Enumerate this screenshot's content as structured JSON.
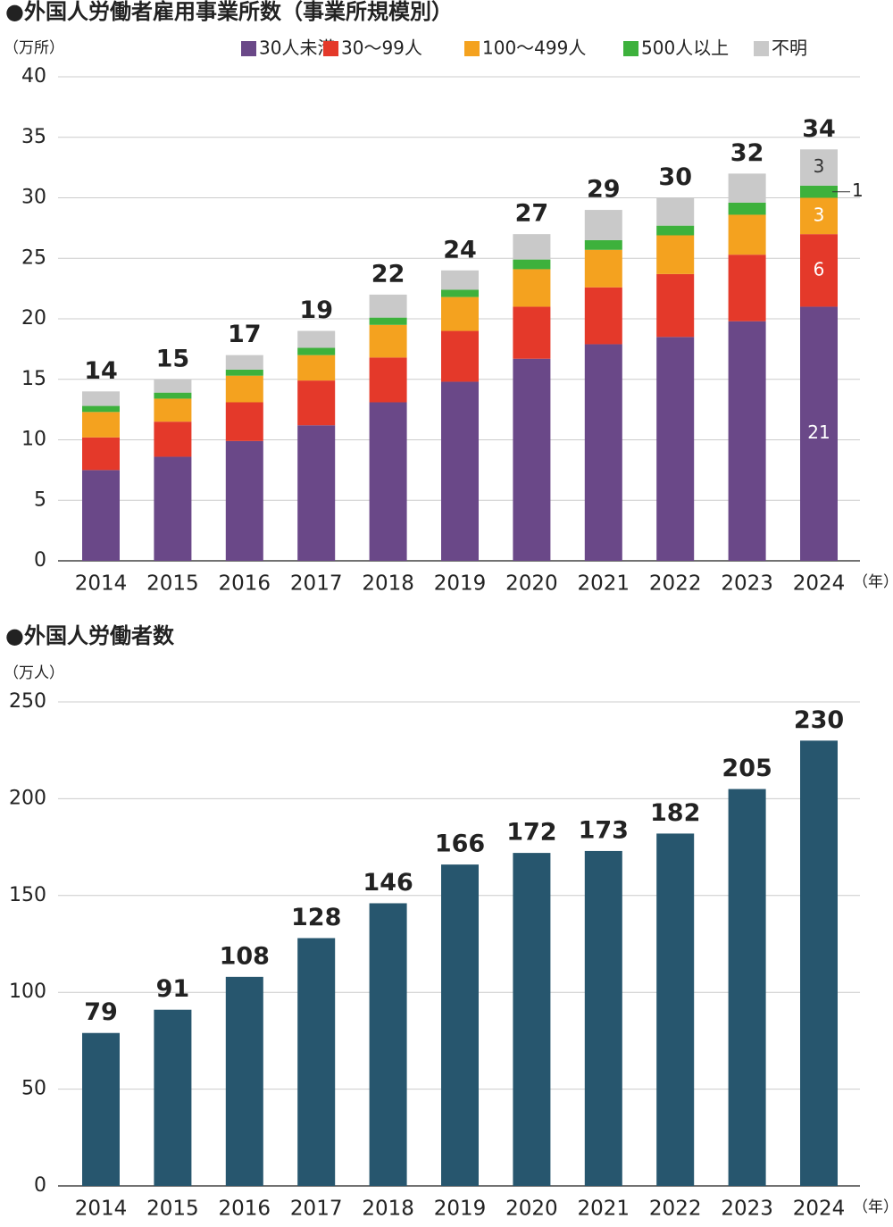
{
  "chart_data": [
    {
      "type": "stacked_bar",
      "title": "●外国人労働者雇用事業所数（事業所規模別）",
      "y_unit": "（万所）",
      "x_unit": "（年）",
      "categories": [
        "2014",
        "2015",
        "2016",
        "2017",
        "2018",
        "2019",
        "2020",
        "2021",
        "2022",
        "2023",
        "2024"
      ],
      "series": [
        {
          "name": "30人未満",
          "color": "#6a4888",
          "values": [
            7.5,
            8.6,
            9.9,
            11.2,
            13.1,
            14.8,
            16.7,
            17.9,
            18.5,
            19.8,
            21
          ],
          "value_labels": [
            null,
            null,
            null,
            null,
            null,
            null,
            null,
            null,
            null,
            null,
            "21"
          ]
        },
        {
          "name": "30〜99人",
          "color": "#e4392a",
          "values": [
            2.7,
            2.9,
            3.2,
            3.7,
            3.7,
            4.2,
            4.3,
            4.7,
            5.2,
            5.5,
            6
          ],
          "value_labels": [
            null,
            null,
            null,
            null,
            null,
            null,
            null,
            null,
            null,
            null,
            "6"
          ]
        },
        {
          "name": "100〜499人",
          "color": "#f4a21f",
          "values": [
            2.1,
            1.9,
            2.2,
            2.1,
            2.7,
            2.8,
            3.1,
            3.1,
            3.2,
            3.3,
            3
          ],
          "value_labels": [
            null,
            null,
            null,
            null,
            null,
            null,
            null,
            null,
            null,
            null,
            "3"
          ]
        },
        {
          "name": "500人以上",
          "color": "#3db13c",
          "values": [
            0.5,
            0.5,
            0.5,
            0.6,
            0.6,
            0.6,
            0.8,
            0.8,
            0.8,
            1.0,
            1
          ],
          "value_labels": [
            null,
            null,
            null,
            null,
            null,
            null,
            null,
            null,
            null,
            null,
            "1"
          ]
        },
        {
          "name": "不明",
          "color": "#c9c9c9",
          "values": [
            1.2,
            1.1,
            1.2,
            1.4,
            1.9,
            1.6,
            2.1,
            2.5,
            2.3,
            2.4,
            3
          ],
          "value_labels": [
            null,
            null,
            null,
            null,
            null,
            null,
            null,
            null,
            null,
            null,
            "3"
          ]
        }
      ],
      "totals": [
        14,
        15,
        17,
        19,
        22,
        24,
        27,
        29,
        30,
        32,
        34
      ],
      "ylim": [
        0,
        40
      ],
      "yticks": [
        0,
        5,
        10,
        15,
        20,
        25,
        30,
        35,
        40
      ],
      "grid": true
    },
    {
      "type": "bar",
      "title": "●外国人労働者数",
      "y_unit": "（万人）",
      "x_unit": "（年）",
      "categories": [
        "2014",
        "2015",
        "2016",
        "2017",
        "2018",
        "2019",
        "2020",
        "2021",
        "2022",
        "2023",
        "2024"
      ],
      "values": [
        79,
        91,
        108,
        128,
        146,
        166,
        172,
        173,
        182,
        205,
        230
      ],
      "color": "#27566e",
      "ylim": [
        0,
        250
      ],
      "yticks": [
        0,
        50,
        100,
        150,
        200,
        250
      ],
      "grid": true
    }
  ]
}
